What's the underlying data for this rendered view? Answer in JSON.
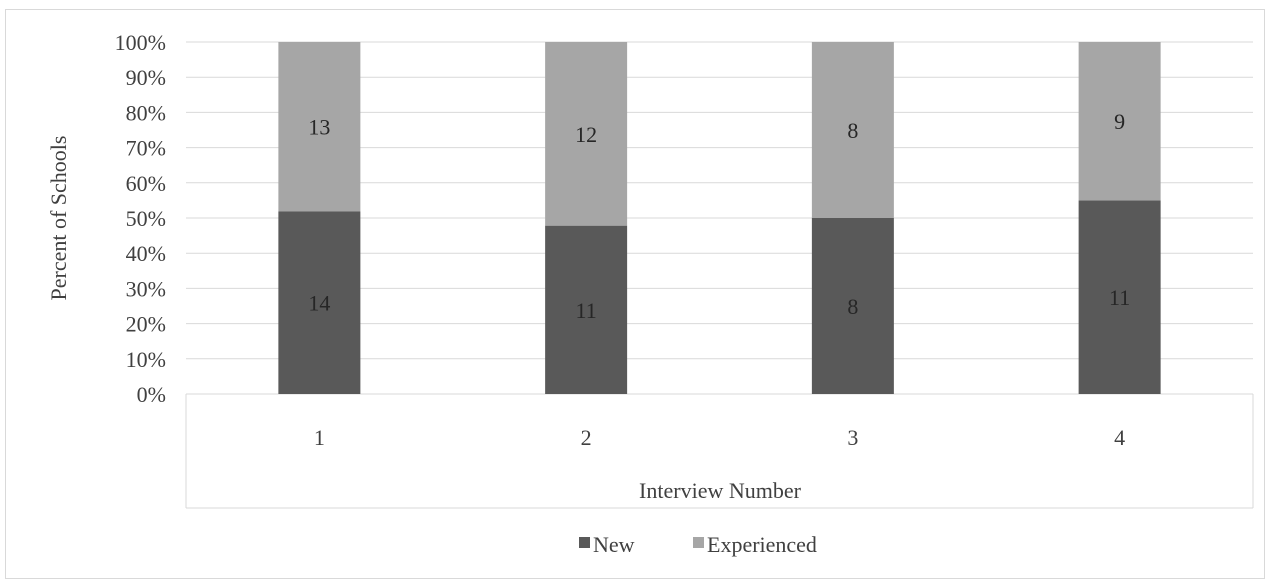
{
  "chart_data": {
    "type": "bar",
    "stacked": true,
    "normalized": true,
    "categories": [
      "1",
      "2",
      "3",
      "4"
    ],
    "series": [
      {
        "name": "New",
        "values": [
          14,
          11,
          8,
          11
        ],
        "color": "#595959"
      },
      {
        "name": "Experienced",
        "values": [
          13,
          12,
          8,
          9
        ],
        "color": "#a6a6a6"
      }
    ],
    "y_ticks": [
      "0%",
      "10%",
      "20%",
      "30%",
      "40%",
      "50%",
      "60%",
      "70%",
      "80%",
      "90%",
      "100%"
    ],
    "ylim": [
      0,
      100
    ],
    "xlabel": "Interview Number",
    "ylabel": "Percent  of Schools",
    "grid": true,
    "legend": "bottom"
  }
}
